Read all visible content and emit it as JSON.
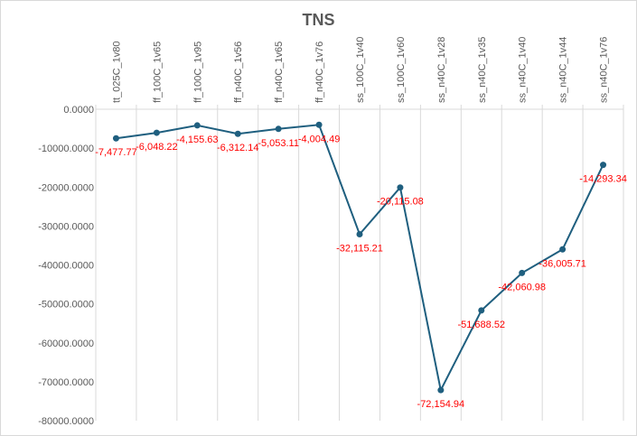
{
  "chart_data": {
    "type": "line",
    "title": "TNS",
    "xlabel": "",
    "ylabel": "",
    "categories": [
      "tt_025C_1v80",
      "ff_100C_1v65",
      "ff_100C_1v95",
      "ff_n40C_1v56",
      "ff_n40C_1v65",
      "ff_n40C_1v76",
      "ss_100C_1v40",
      "ss_100C_1v60",
      "ss_n40C_1v28",
      "ss_n40C_1v35",
      "ss_n40C_1v40",
      "ss_n40C_1v44",
      "ss_n40C_1v76"
    ],
    "values": [
      -7477.77,
      -6048.22,
      -4155.63,
      -6312.14,
      -5053.11,
      -4004.49,
      -32115.21,
      -20115.08,
      -72154.94,
      -51688.52,
      -42060.98,
      -36005.71,
      -14293.34
    ],
    "data_labels": [
      "-7,477.77",
      "-6,048.22",
      "-4,155.63",
      "-6,312.14",
      "-5,053.11",
      "-4,004.49",
      "-32,115.21",
      "-20,115.08",
      "-72,154.94",
      "-51,688.52",
      "-42,060.98",
      "-36,005.71",
      "-14,293.34"
    ],
    "ylim": [
      -80000,
      0
    ],
    "y_ticks": [
      0,
      -10000,
      -20000,
      -30000,
      -40000,
      -50000,
      -60000,
      -70000,
      -80000
    ],
    "y_tick_labels": [
      "0.0000",
      "-10000.0000",
      "-20000.0000",
      "-30000.0000",
      "-40000.0000",
      "-50000.0000",
      "-60000.0000",
      "-70000.0000",
      "-80000.0000"
    ],
    "x_axis_position": "top",
    "grid": "vertical",
    "legend": "none",
    "colors": {
      "line": "#1f5f7f",
      "label": "#ff0000",
      "grid": "#d9d9d9",
      "text": "#595959"
    }
  }
}
